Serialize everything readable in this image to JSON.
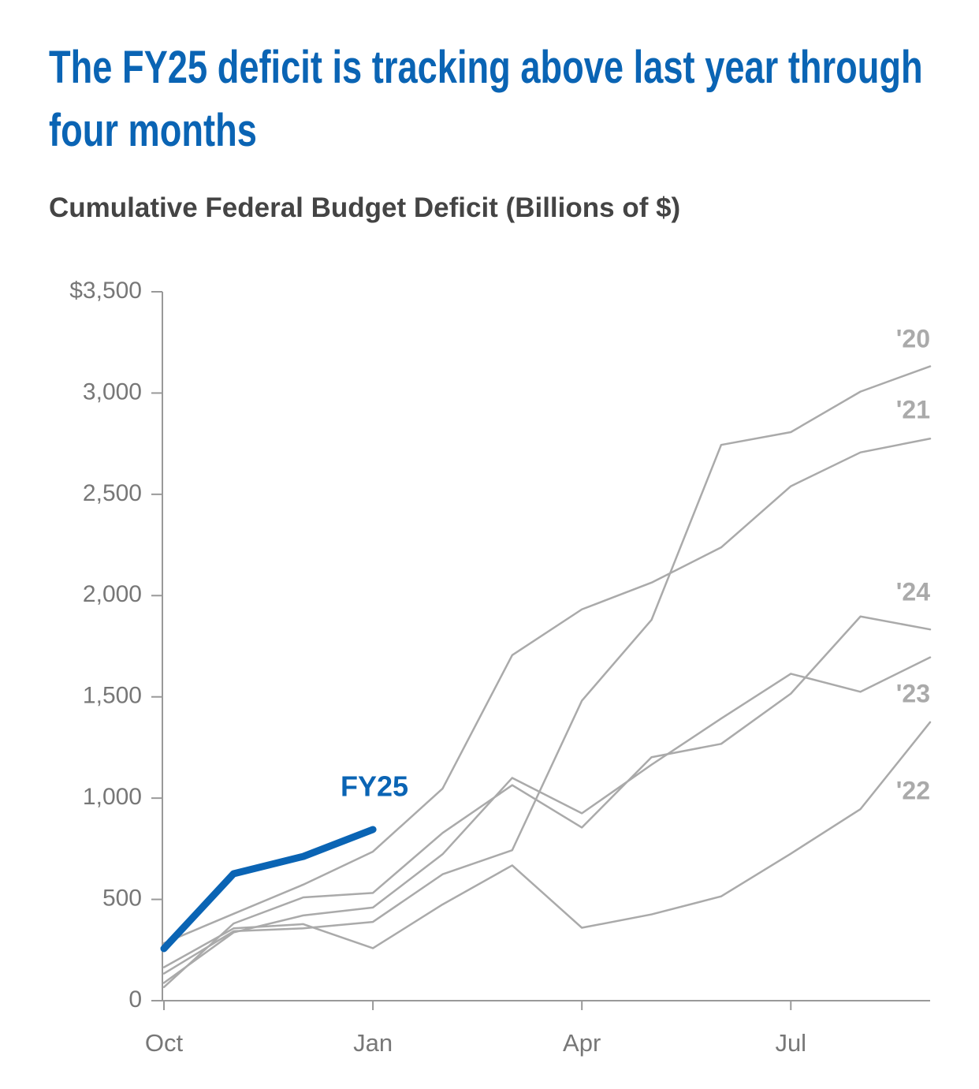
{
  "chart_data": {
    "type": "line",
    "title": "The FY25 deficit is tracking above last year through four months",
    "subtitle": "Cumulative Federal Budget Deficit (Billions of $)",
    "categories": [
      "Oct",
      null,
      null,
      "Jan",
      null,
      null,
      "Apr",
      null,
      null,
      "Jul",
      null,
      null
    ],
    "ylim": [
      0,
      3500
    ],
    "yticks": [
      0,
      500,
      {
        "value": 1000,
        "label": "1,000"
      },
      {
        "value": 1500,
        "label": "1,500"
      },
      {
        "value": 2000,
        "label": "2,000"
      },
      {
        "value": 2500,
        "label": "2,500"
      },
      {
        "value": 3000,
        "label": "3,000"
      },
      {
        "value": 3500,
        "label": "$3,500"
      }
    ],
    "series": [
      {
        "name": "'20",
        "color": "#aaaaaa",
        "values": [
          134,
          343,
          357,
          389,
          624,
          743,
          1481,
          1880,
          2744,
          2807,
          3007,
          3132
        ]
      },
      {
        "name": "'21",
        "color": "#aaaaaa",
        "values": [
          284,
          429,
          573,
          736,
          1047,
          1706,
          1932,
          2064,
          2238,
          2540,
          2707,
          2775
        ]
      },
      {
        "name": "'24",
        "color": "#aaaaaa",
        "values": [
          67,
          381,
          510,
          532,
          828,
          1064,
          855,
          1202,
          1268,
          1516,
          1897,
          1833
        ]
      },
      {
        "name": "'23",
        "color": "#aaaaaa",
        "values": [
          88,
          337,
          421,
          460,
          723,
          1100,
          925,
          1165,
          1393,
          1614,
          1525,
          1695
        ]
      },
      {
        "name": "'22",
        "color": "#aaaaaa",
        "values": [
          165,
          357,
          378,
          259,
          475,
          668,
          360,
          426,
          515,
          726,
          946,
          1375
        ]
      },
      {
        "name": "FY25",
        "color": "#0a64b4",
        "values": [
          257,
          627,
          712,
          845,
          null,
          null,
          null,
          null,
          null,
          null,
          null,
          null
        ]
      }
    ]
  }
}
